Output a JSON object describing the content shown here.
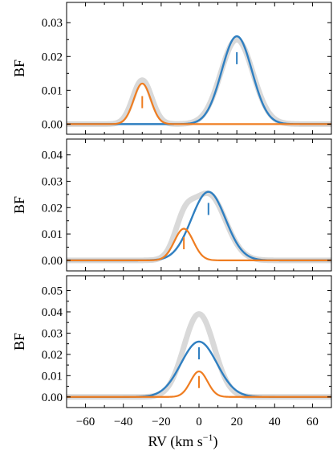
{
  "colors": {
    "total": "#d9d9d9",
    "primary": "#2f7fc1",
    "secondary": "#ef7d21",
    "frame": "#000000"
  },
  "chart_data": [
    {
      "type": "line",
      "panel": "top",
      "ylabel": "BF",
      "xlim": [
        -70,
        70
      ],
      "ylim": [
        -0.003,
        0.036
      ],
      "yticks": [
        0.0,
        0.01,
        0.02,
        0.03
      ],
      "ytick_labels": [
        "0.00",
        "0.01",
        "0.02",
        "0.03"
      ],
      "xticks": [
        -60,
        -40,
        -20,
        0,
        20,
        40,
        60
      ],
      "components": [
        {
          "role": "total",
          "color": "#d9d9d9",
          "peaks": [
            {
              "center": -30,
              "amp": 0.013,
              "sigma": 5.0
            },
            {
              "center": 20,
              "amp": 0.025,
              "sigma": 8.5
            }
          ]
        },
        {
          "role": "primary",
          "color": "#2f7fc1",
          "peaks": [
            {
              "center": 20,
              "amp": 0.026,
              "sigma": 8.0
            }
          ]
        },
        {
          "role": "secondary",
          "color": "#ef7d21",
          "peaks": [
            {
              "center": -30,
              "amp": 0.012,
              "sigma": 4.5
            }
          ]
        }
      ],
      "markers": [
        {
          "color": "#2f7fc1",
          "x": 20,
          "y_center": 0.0195
        },
        {
          "color": "#ef7d21",
          "x": -30,
          "y_center": 0.0065
        }
      ]
    },
    {
      "type": "line",
      "panel": "middle",
      "ylabel": "BF",
      "xlim": [
        -70,
        70
      ],
      "ylim": [
        -0.004,
        0.046
      ],
      "yticks": [
        0.0,
        0.01,
        0.02,
        0.03,
        0.04
      ],
      "ytick_labels": [
        "0.00",
        "0.01",
        "0.02",
        "0.03",
        "0.04"
      ],
      "xticks": [
        -60,
        -40,
        -20,
        0,
        20,
        40,
        60
      ],
      "components": [
        {
          "role": "total",
          "color": "#d9d9d9",
          "peaks": [
            {
              "center": -8,
              "amp": 0.011,
              "sigma": 5.0
            },
            {
              "center": 5,
              "amp": 0.025,
              "sigma": 9.0
            }
          ]
        },
        {
          "role": "primary",
          "color": "#2f7fc1",
          "peaks": [
            {
              "center": 5,
              "amp": 0.026,
              "sigma": 9.0
            }
          ]
        },
        {
          "role": "secondary",
          "color": "#ef7d21",
          "peaks": [
            {
              "center": -8,
              "amp": 0.012,
              "sigma": 5.0
            }
          ]
        }
      ],
      "markers": [
        {
          "color": "#2f7fc1",
          "x": 5,
          "y_center": 0.0195
        },
        {
          "color": "#ef7d21",
          "x": -8,
          "y_center": 0.0065
        }
      ]
    },
    {
      "type": "line",
      "panel": "bottom",
      "ylabel": "BF",
      "xlabel": "RV (km s",
      "xlabel_sup": "−1",
      "xlabel_close": ")",
      "xlim": [
        -70,
        70
      ],
      "ylim": [
        -0.005,
        0.057
      ],
      "yticks": [
        0.0,
        0.01,
        0.02,
        0.03,
        0.04,
        0.05
      ],
      "ytick_labels": [
        "0.00",
        "0.01",
        "0.02",
        "0.03",
        "0.04",
        "0.05"
      ],
      "xticks": [
        -60,
        -40,
        -20,
        0,
        20,
        40,
        60
      ],
      "xtick_labels": [
        "−60",
        "−40",
        "−20",
        "0",
        "20",
        "40",
        "60"
      ],
      "components": [
        {
          "role": "total",
          "color": "#d9d9d9",
          "peaks": [
            {
              "center": 0,
              "amp": 0.039,
              "sigma": 8.0
            }
          ]
        },
        {
          "role": "primary",
          "color": "#2f7fc1",
          "peaks": [
            {
              "center": 0,
              "amp": 0.026,
              "sigma": 9.5
            }
          ]
        },
        {
          "role": "secondary",
          "color": "#ef7d21",
          "peaks": [
            {
              "center": 0,
              "amp": 0.012,
              "sigma": 4.5
            }
          ]
        }
      ],
      "markers": [
        {
          "color": "#2f7fc1",
          "x": 0,
          "y_center": 0.0205
        },
        {
          "color": "#ef7d21",
          "x": 0,
          "y_center": 0.007
        }
      ]
    }
  ]
}
